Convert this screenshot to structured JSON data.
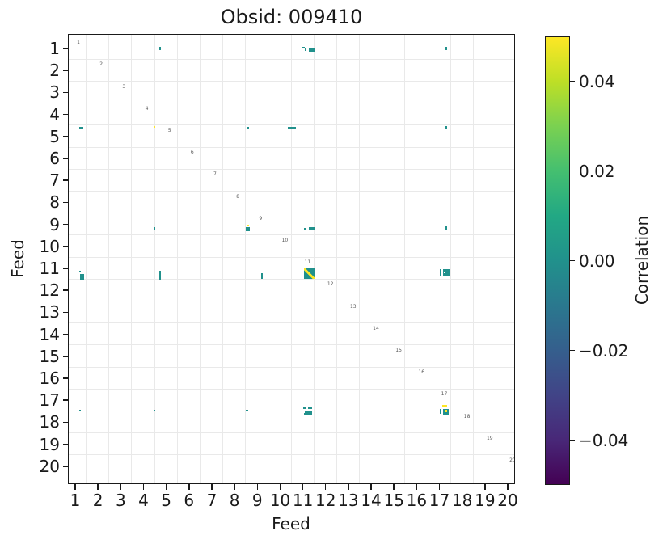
{
  "chart_data": {
    "type": "heatmap",
    "title": "Obsid: 009410",
    "xlabel": "Feed",
    "ylabel": "Feed",
    "x_range": [
      1,
      20
    ],
    "y_range": [
      1,
      20
    ],
    "grid": true,
    "x_tick_labels": [
      "1",
      "2",
      "3",
      "4",
      "5",
      "6",
      "7",
      "8",
      "9",
      "10",
      "11",
      "12",
      "13",
      "14",
      "15",
      "16",
      "17",
      "18",
      "19",
      "20"
    ],
    "y_tick_labels": [
      "1",
      "2",
      "3",
      "4",
      "5",
      "6",
      "7",
      "8",
      "9",
      "10",
      "11",
      "12",
      "13",
      "14",
      "15",
      "16",
      "17",
      "18",
      "19",
      "20"
    ],
    "diagonal_feed_labels": [
      "1",
      "2",
      "3",
      "4",
      "5",
      "6",
      "7",
      "8",
      "9",
      "10",
      "11",
      "12",
      "13",
      "14",
      "15",
      "16",
      "17",
      "18",
      "19",
      "20"
    ],
    "colorbar": {
      "label": "Correlation",
      "position": "right",
      "tick_labels": [
        "0.04",
        "0.02",
        "0.00",
        "−0.02",
        "−0.04"
      ],
      "tick_values": [
        0.04,
        0.02,
        0.0,
        -0.02,
        -0.04
      ],
      "vmin": -0.05,
      "vmax": 0.05,
      "colormap": "viridis",
      "gradient_stops": [
        "#fde725",
        "#bddf26",
        "#7ad151",
        "#44bf70",
        "#22a884",
        "#21918c",
        "#2a788e",
        "#355f8d",
        "#414487",
        "#482878",
        "#440154"
      ]
    },
    "mark_colors": {
      "t": "#21918c",
      "y": "#fde725",
      "w": "#ffffff"
    },
    "correlated_feeds": [
      1,
      5,
      9,
      11,
      17
    ],
    "marks": [
      {
        "x": 4.76,
        "y": 1.04,
        "w": 2,
        "h": 4,
        "c": "t"
      },
      {
        "x": 11.05,
        "y": 1.0,
        "w": 4,
        "h": 2,
        "c": "t"
      },
      {
        "x": 11.14,
        "y": 1.09,
        "w": 2,
        "h": 3,
        "c": "t"
      },
      {
        "x": 11.42,
        "y": 1.09,
        "w": 8,
        "h": 5,
        "c": "t"
      },
      {
        "x": 17.33,
        "y": 1.04,
        "w": 2,
        "h": 4,
        "c": "t"
      },
      {
        "x": 1.3,
        "y": 4.64,
        "w": 5,
        "h": 2,
        "c": "t"
      },
      {
        "x": 4.5,
        "y": 4.6,
        "w": 2,
        "h": 2,
        "c": "y"
      },
      {
        "x": 8.63,
        "y": 4.64,
        "w": 3,
        "h": 2,
        "c": "t"
      },
      {
        "x": 10.55,
        "y": 4.64,
        "w": 10,
        "h": 2,
        "c": "t"
      },
      {
        "x": 17.33,
        "y": 4.62,
        "w": 2,
        "h": 3,
        "c": "t"
      },
      {
        "x": 4.52,
        "y": 9.24,
        "w": 2,
        "h": 4,
        "c": "t"
      },
      {
        "x": 8.63,
        "y": 9.26,
        "w": 5,
        "h": 5,
        "c": "t"
      },
      {
        "x": 8.63,
        "y": 9.1,
        "w": 2,
        "h": 2,
        "c": "y"
      },
      {
        "x": 11.12,
        "y": 9.24,
        "w": 2,
        "h": 3,
        "c": "t"
      },
      {
        "x": 11.42,
        "y": 9.24,
        "w": 7,
        "h": 4,
        "c": "t"
      },
      {
        "x": 17.33,
        "y": 9.2,
        "w": 2,
        "h": 4,
        "c": "t"
      },
      {
        "x": 1.25,
        "y": 11.19,
        "w": 2,
        "h": 2,
        "c": "t"
      },
      {
        "x": 1.32,
        "y": 11.42,
        "w": 5,
        "h": 7,
        "c": "t"
      },
      {
        "x": 4.76,
        "y": 11.35,
        "w": 2,
        "h": 11,
        "c": "t"
      },
      {
        "x": 9.24,
        "y": 11.39,
        "w": 2,
        "h": 7,
        "c": "t"
      },
      {
        "x": 11.3,
        "y": 11.29,
        "w": 13,
        "h": 13,
        "c": "td"
      },
      {
        "x": 17.09,
        "y": 11.24,
        "w": 2,
        "h": 9,
        "c": "t"
      },
      {
        "x": 17.35,
        "y": 11.24,
        "w": 8,
        "h": 9,
        "c": "t"
      },
      {
        "x": 17.26,
        "y": 11.22,
        "w": 2,
        "h": 2,
        "c": "w"
      },
      {
        "x": 1.25,
        "y": 17.5,
        "w": 2,
        "h": 2,
        "c": "t"
      },
      {
        "x": 4.52,
        "y": 17.5,
        "w": 2,
        "h": 2,
        "c": "t"
      },
      {
        "x": 8.58,
        "y": 17.5,
        "w": 3,
        "h": 2,
        "c": "t"
      },
      {
        "x": 11.09,
        "y": 17.4,
        "w": 3,
        "h": 2,
        "c": "t"
      },
      {
        "x": 11.34,
        "y": 17.4,
        "w": 5,
        "h": 2,
        "c": "t"
      },
      {
        "x": 11.25,
        "y": 17.6,
        "w": 10,
        "h": 6,
        "c": "t"
      },
      {
        "x": 11.08,
        "y": 17.58,
        "w": 2,
        "h": 2,
        "c": "w"
      },
      {
        "x": 17.09,
        "y": 17.55,
        "w": 2,
        "h": 6,
        "c": "t"
      },
      {
        "x": 17.25,
        "y": 17.3,
        "w": 6,
        "h": 2,
        "c": "y"
      },
      {
        "x": 17.33,
        "y": 17.55,
        "w": 7,
        "h": 7,
        "c": "t"
      },
      {
        "x": 17.31,
        "y": 17.53,
        "w": 3,
        "h": 3,
        "c": "y"
      }
    ]
  }
}
